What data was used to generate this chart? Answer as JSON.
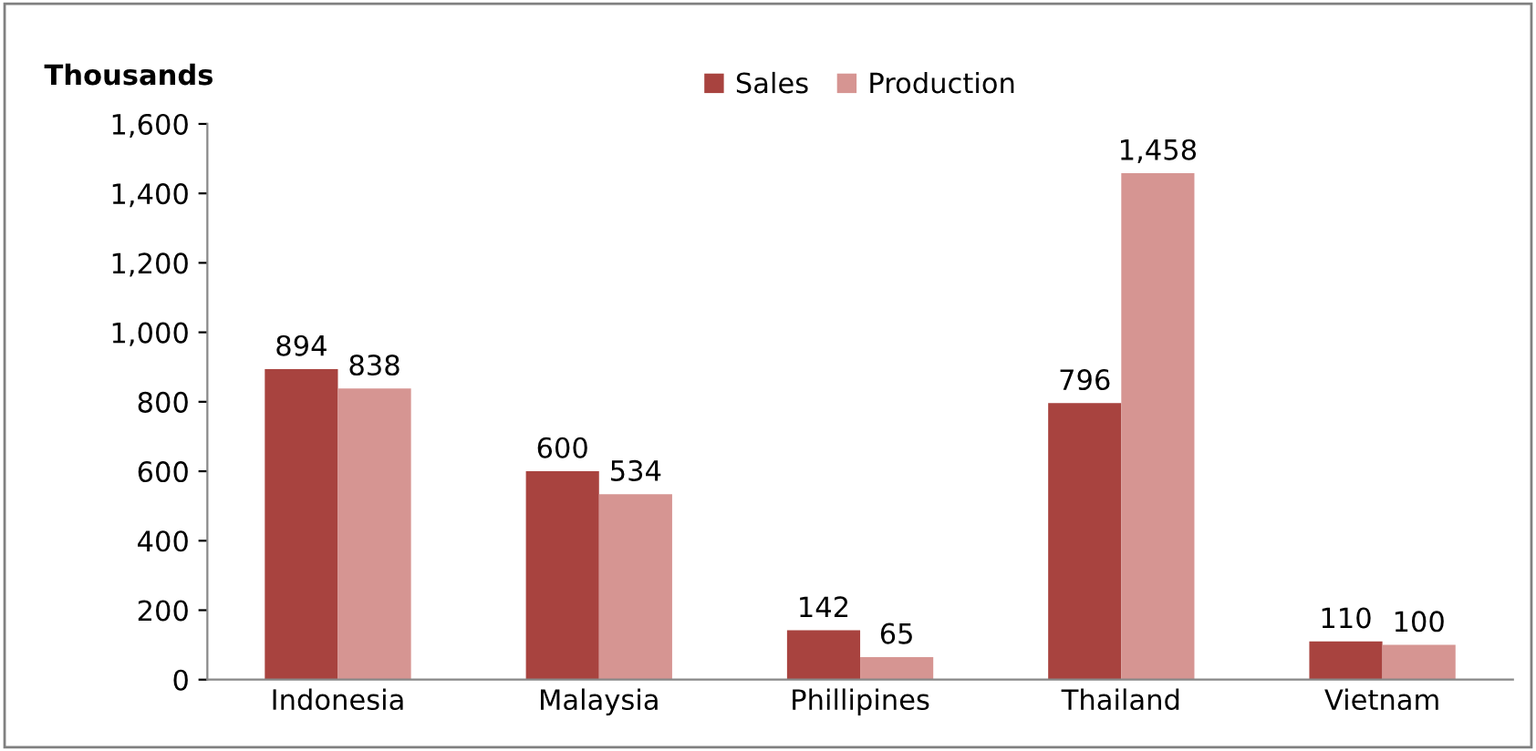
{
  "chart_data": {
    "type": "bar",
    "ylabel": "Thousands",
    "categories": [
      "Indonesia",
      "Malaysia",
      "Phillipines",
      "Thailand",
      "Vietnam"
    ],
    "series": [
      {
        "name": "Sales",
        "color": "#a8433f",
        "values": [
          894,
          600,
          142,
          796,
          110
        ],
        "value_labels": [
          "894",
          "600",
          "142",
          "796",
          "110"
        ]
      },
      {
        "name": "Production",
        "color": "#d69592",
        "values": [
          838,
          534,
          65,
          1458,
          100
        ],
        "value_labels": [
          "838",
          "534",
          "65",
          "1,458",
          "100"
        ]
      }
    ],
    "ylim": [
      0,
      1600
    ],
    "yticks": [
      {
        "value": 0,
        "label": "0"
      },
      {
        "value": 200,
        "label": "200"
      },
      {
        "value": 400,
        "label": "400"
      },
      {
        "value": 600,
        "label": "600"
      },
      {
        "value": 800,
        "label": "800"
      },
      {
        "value": 1000,
        "label": "1,000"
      },
      {
        "value": 1200,
        "label": "1,200"
      },
      {
        "value": 1400,
        "label": "1,400"
      },
      {
        "value": 1600,
        "label": "1,600"
      }
    ],
    "grid": false,
    "legend": "top"
  }
}
